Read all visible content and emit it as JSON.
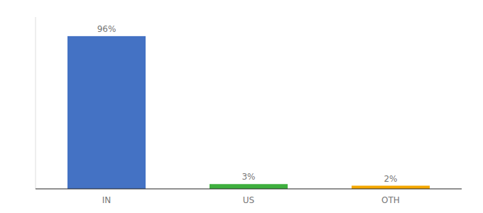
{
  "chart_data": {
    "type": "bar",
    "categories": [
      "IN",
      "US",
      "OTH"
    ],
    "values": [
      96,
      3,
      2
    ],
    "value_labels": [
      "96%",
      "3%",
      "2%"
    ],
    "colors": [
      "#4472C4",
      "#3EAF3E",
      "#F5A800"
    ],
    "ylim": [
      0,
      108
    ],
    "data_labels": true,
    "tick_labels": "x"
  }
}
